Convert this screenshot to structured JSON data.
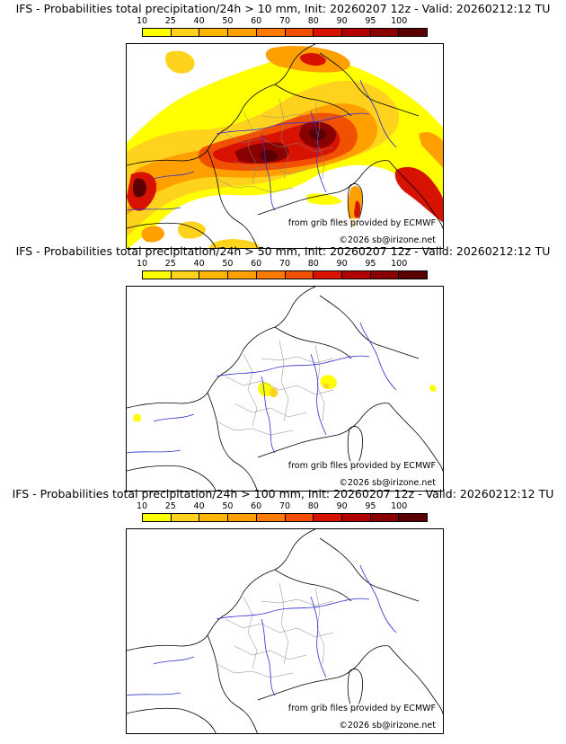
{
  "colorbar": {
    "labels": [
      "10",
      "25",
      "40",
      "50",
      "60",
      "70",
      "80",
      "90",
      "95",
      "100"
    ],
    "colors": [
      "#ffff00",
      "#ffd21e",
      "#ffb600",
      "#ffa000",
      "#ff7a00",
      "#f05000",
      "#d71200",
      "#b00000",
      "#880000",
      "#5a0000"
    ]
  },
  "panels": [
    {
      "title": "IFS - Probabilities total precipitation/24h > 10 mm, Init: 20260207 12z - Valid: 20260212:12 TU",
      "credit_grib": "from grib files provided by ECMWF",
      "credit_site": "©2026 sb@irizone.net"
    },
    {
      "title": "IFS - Probabilities total precipitation/24h > 50 mm, Init: 20260207 12z - Valid: 20260212:12 TU",
      "credit_grib": "from grib files provided by ECMWF",
      "credit_site": "©2026 sb@irizone.net"
    },
    {
      "title": "IFS - Probabilities total precipitation/24h > 100 mm, Init: 20260207 12z - Valid: 20260212:12 TU",
      "credit_grib": "from grib files provided by ECMWF",
      "credit_site": "©2026 sb@irizone.net"
    }
  ]
}
